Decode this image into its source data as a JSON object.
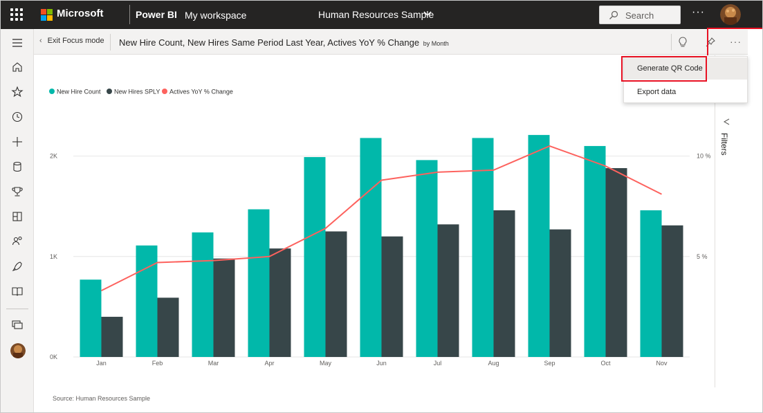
{
  "topbar": {
    "brand": "Microsoft",
    "app": "Power BI",
    "workspace": "My workspace",
    "report": "Human Resources Sample",
    "search_placeholder": "Search",
    "more": "···"
  },
  "header": {
    "exit_focus": "Exit Focus mode",
    "visual_title": "New Hire Count, New Hires Same Period Last Year, Actives YoY % Change",
    "visual_subtitle": "by Month",
    "more": "···"
  },
  "context_menu": {
    "items": [
      "Generate QR Code",
      "Export data"
    ]
  },
  "filters_label": "Filters",
  "left_nav": {
    "icons": [
      "hamburger-icon",
      "home-icon",
      "star-icon",
      "clock-icon",
      "plus-icon",
      "cylinder-icon",
      "trophy-icon",
      "dashboard-icon",
      "people-icon",
      "rocket-icon",
      "book-icon",
      "monitor-icon",
      "avatar"
    ]
  },
  "colors": {
    "new_hire": "#01b8aa",
    "sply": "#374649",
    "yoy": "#fd625e",
    "highlight": "#e81123"
  },
  "chart_data": {
    "type": "bar",
    "categories": [
      "Jan",
      "Feb",
      "Mar",
      "Apr",
      "May",
      "Jun",
      "Jul",
      "Aug",
      "Sep",
      "Oct",
      "Nov"
    ],
    "series": [
      {
        "name": "New Hire Count",
        "type": "bar",
        "axis": "left",
        "values": [
          770,
          1110,
          1240,
          1470,
          1990,
          2180,
          1960,
          2180,
          2210,
          2100,
          1460
        ]
      },
      {
        "name": "New Hires SPLY",
        "type": "bar",
        "axis": "left",
        "values": [
          400,
          590,
          980,
          1080,
          1250,
          1200,
          1320,
          1460,
          1270,
          1880,
          1310
        ]
      },
      {
        "name": "Actives YoY % Change",
        "type": "line",
        "axis": "right",
        "values": [
          3.3,
          4.7,
          4.8,
          5.0,
          6.4,
          8.8,
          9.2,
          9.3,
          10.5,
          9.5,
          8.1
        ]
      }
    ],
    "y_left": {
      "ticks": [
        "0K",
        "1K",
        "2K"
      ],
      "ylim": [
        0,
        2500
      ]
    },
    "y_right": {
      "ticks": [
        "5 %",
        "10 %"
      ],
      "ylim": [
        0,
        12.5
      ]
    },
    "legend_position": "top-left",
    "grid": true,
    "source": "Source: Human Resources Sample"
  }
}
